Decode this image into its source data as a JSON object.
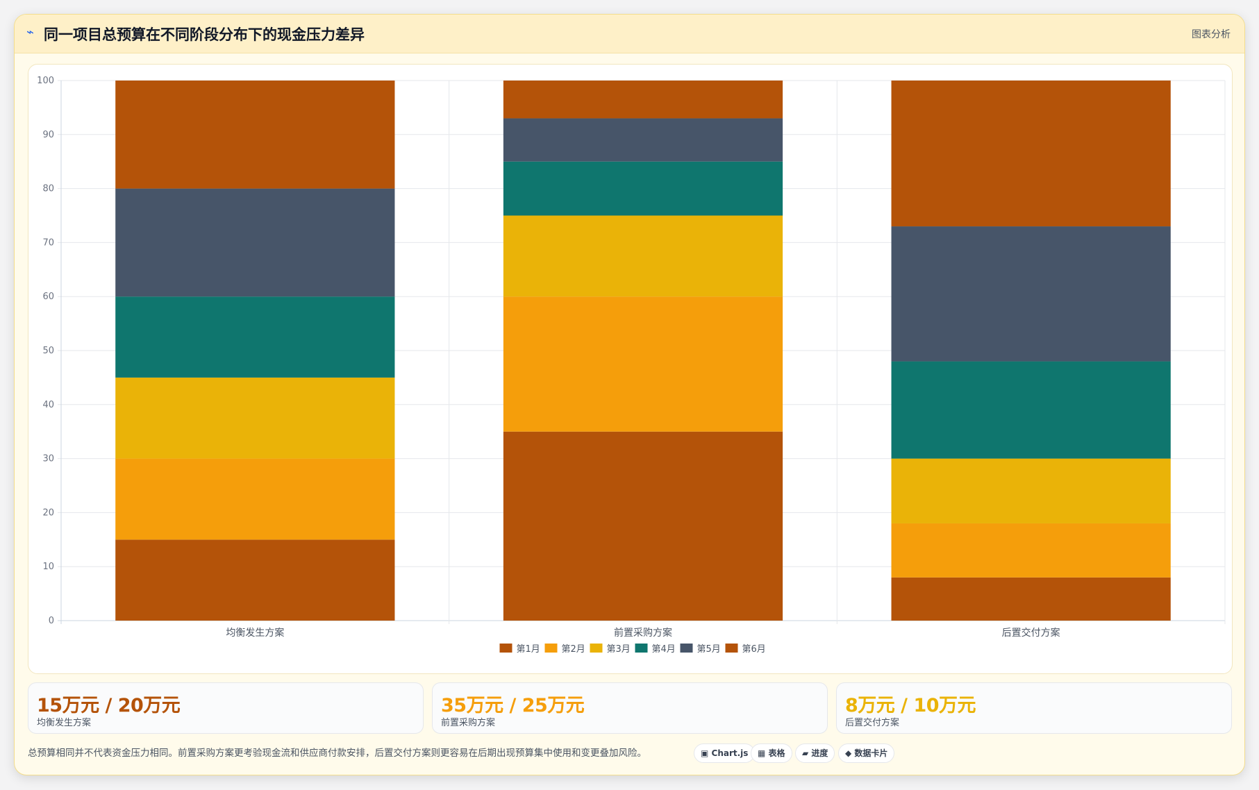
{
  "header": {
    "icon": "chart-icon",
    "title": "同一项目总预算在不同阶段分布下的现金压力差异",
    "right_label": "图表分析"
  },
  "chart_data": {
    "type": "bar",
    "stacked": true,
    "categories": [
      "均衡发生方案",
      "前置采购方案",
      "后置交付方案"
    ],
    "series": [
      {
        "name": "第1月",
        "color": "#b45309",
        "values": [
          15,
          35,
          8
        ]
      },
      {
        "name": "第2月",
        "color": "#f59e0b",
        "values": [
          15,
          25,
          10
        ]
      },
      {
        "name": "第3月",
        "color": "#eab308",
        "values": [
          15,
          15,
          12
        ]
      },
      {
        "name": "第4月",
        "color": "#0f766e",
        "values": [
          15,
          10,
          18
        ]
      },
      {
        "name": "第5月",
        "color": "#475569",
        "values": [
          20,
          8,
          25
        ]
      },
      {
        "name": "第6月",
        "color": "#b45309",
        "values": [
          20,
          7,
          27
        ]
      }
    ],
    "ylim": [
      0,
      100
    ],
    "yticks": [
      0,
      10,
      20,
      30,
      40,
      50,
      60,
      70,
      80,
      90,
      100
    ],
    "grid": true,
    "legend_position": "bottom"
  },
  "stats": [
    {
      "value": "15万元 / 20万元",
      "label": "均衡发生方案",
      "color": "#b45309"
    },
    {
      "value": "35万元 / 25万元",
      "label": "前置采购方案",
      "color": "#f59e0b"
    },
    {
      "value": "8万元 / 10万元",
      "label": "后置交付方案",
      "color": "#eab308"
    }
  ],
  "footer": {
    "note": "总预算相同并不代表资金压力相同。前置采购方案更考验现金流和供应商付款安排，后置交付方案则更容易在后期出现预算集中使用和变更叠加风险。",
    "tags": [
      "▣ Chart.js",
      "▦ 表格",
      "▰ 进度",
      "◆ 数据卡片"
    ]
  }
}
